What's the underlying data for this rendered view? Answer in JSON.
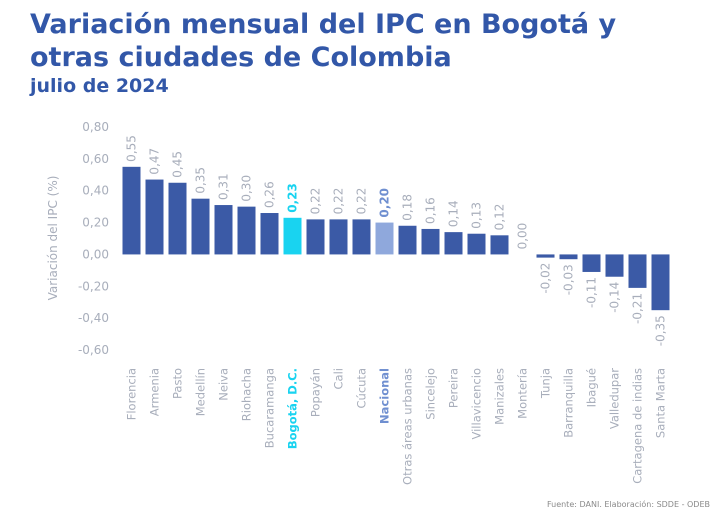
{
  "header": {
    "title": "Variación mensual del IPC en Bogotá y otras ciudades de Colombia",
    "subtitle": "julio de 2024"
  },
  "colors": {
    "title": "#3257a8",
    "bar": "#3b5aa6",
    "highlight_bogota": "#19d3f0",
    "highlight_nacional": "#8fa8dc",
    "axis_text": "#a8aebb",
    "value_text": "#a8aebb",
    "bogota_text": "#19d3f0",
    "nacional_text": "#6f8fd0"
  },
  "source": "Fuente: DANI. Elaboración: SDDE - ODEB",
  "chart_data": {
    "type": "bar",
    "ylabel": "Variación del IPC (%)",
    "ylim": [
      -0.6,
      0.8
    ],
    "yticks": [
      0.8,
      0.6,
      0.4,
      0.2,
      0.0,
      -0.2,
      -0.4,
      -0.6
    ],
    "ytick_labels": [
      "0,80",
      "0,60",
      "0,40",
      "0,20",
      "0,00",
      "-0,20",
      "-0,40",
      "-0,60"
    ],
    "grid": false,
    "categories": [
      "Florencia",
      "Armenia",
      "Pasto",
      "Medellín",
      "Neiva",
      "Riohacha",
      "Bucaramanga",
      "Bogotá, D.C.",
      "Popayán",
      "Cali",
      "Cúcuta",
      "Nacional",
      "Otras áreas urbanas",
      "Sincelejo",
      "Pereira",
      "Villavicencio",
      "Manizales",
      "Montería",
      "Tunja",
      "Barranquilla",
      "Ibagué",
      "Valledupar",
      "Cartagena de indias",
      "Santa Marta"
    ],
    "values": [
      0.55,
      0.47,
      0.45,
      0.35,
      0.31,
      0.3,
      0.26,
      0.23,
      0.22,
      0.22,
      0.22,
      0.2,
      0.18,
      0.16,
      0.14,
      0.13,
      0.12,
      0.0,
      -0.02,
      -0.03,
      -0.11,
      -0.14,
      -0.21,
      -0.35
    ],
    "value_labels": [
      "0,55",
      "0,47",
      "0,45",
      "0,35",
      "0,31",
      "0,30",
      "0,26",
      "0,23",
      "0,22",
      "0,22",
      "0,22",
      "0,20",
      "0,18",
      "0,16",
      "0,14",
      "0,13",
      "0,12",
      "0,00",
      "-0,02",
      "-0,03",
      "-0,11",
      "-0,14",
      "-0,21",
      "-0,35"
    ],
    "highlights": {
      "Bogotá, D.C.": "highlight_bogota",
      "Nacional": "highlight_nacional"
    }
  }
}
